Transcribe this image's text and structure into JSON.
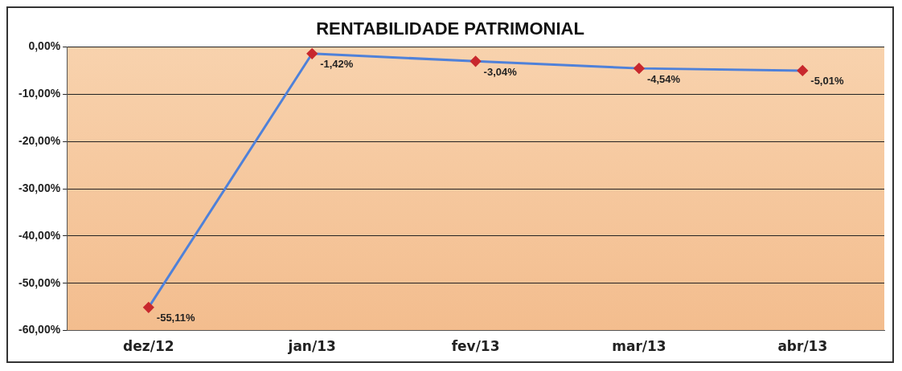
{
  "chart_data": {
    "type": "line",
    "title": "RENTABILIDADE PATRIMONIAL",
    "categories": [
      "dez/12",
      "jan/13",
      "fev/13",
      "mar/13",
      "abr/13"
    ],
    "series": [
      {
        "color": "#4f81d9",
        "colors": [
          "#c8282d",
          "#c8282d",
          "#c8282d",
          "#c8282d",
          "#c8282d"
        ],
        "values": [
          -55.11,
          -1.42,
          -3.04,
          -4.54,
          -5.01
        ],
        "value_labels": [
          "-55,11%",
          "-1,42%",
          "-3,04%",
          "-4,54%",
          "-5,01%"
        ]
      }
    ],
    "ylim": [
      -60,
      0
    ],
    "yticks": [
      {
        "value": -60,
        "label": "-60,00%"
      },
      {
        "value": -50,
        "label": "-50,00%"
      },
      {
        "value": -40,
        "label": "-40,00%"
      },
      {
        "value": -30,
        "label": "-30,00%"
      },
      {
        "value": -20,
        "label": "-20,00%"
      },
      {
        "value": -10,
        "label": "-10,00%"
      },
      {
        "value": 0,
        "label": "0,00%"
      }
    ],
    "grid": "y",
    "legend": false,
    "marker": "diamond",
    "line_style": "solid"
  }
}
